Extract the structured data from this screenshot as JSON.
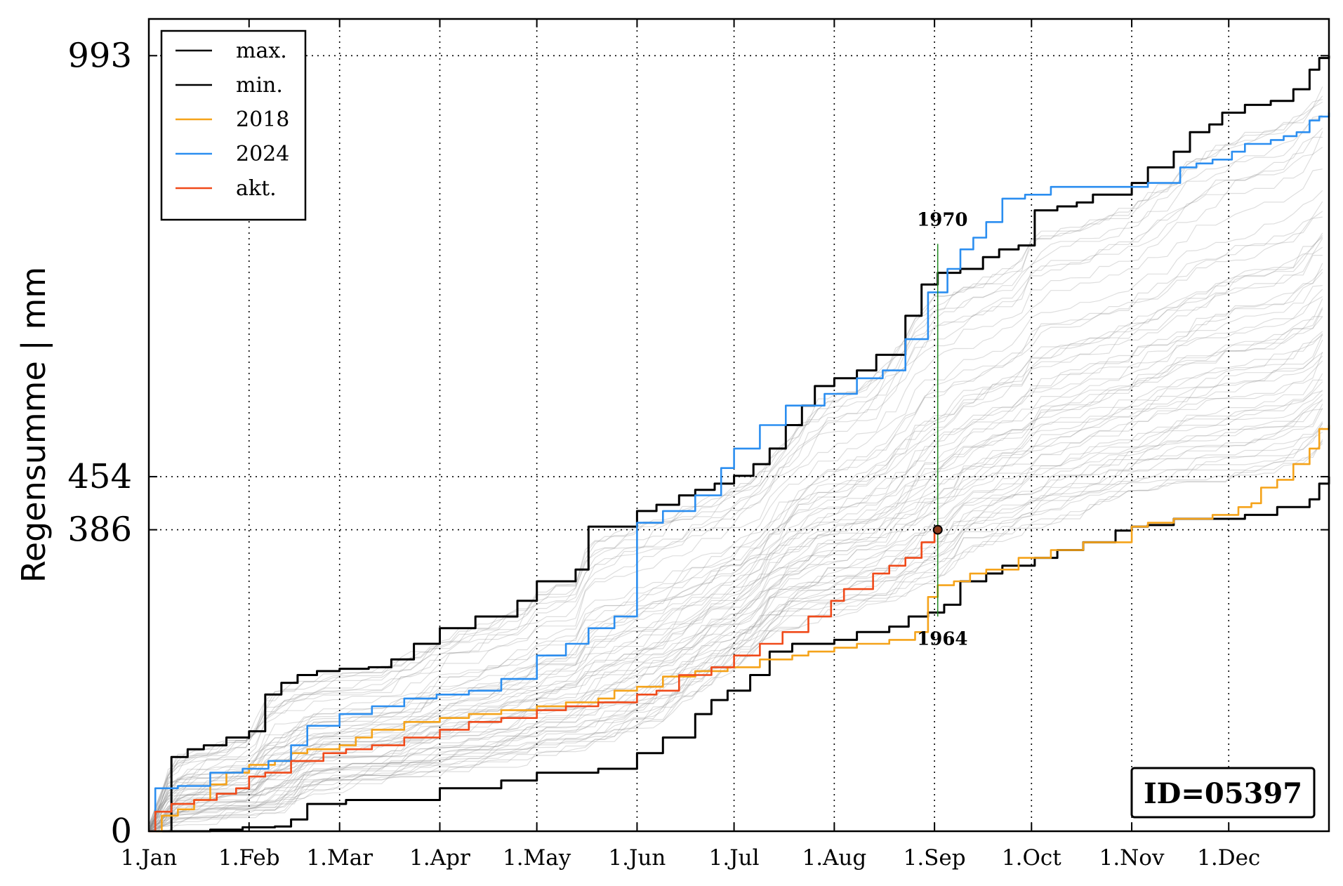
{
  "chart_data": {
    "type": "line",
    "xlabel": "",
    "ylabel": "Regensumme | mm",
    "x_unit": "day of year",
    "xlim": [
      1,
      366
    ],
    "ylim": [
      0,
      1040
    ],
    "x_ticks": [
      {
        "label": "1.Jan",
        "day": 1
      },
      {
        "label": "1.Feb",
        "day": 32
      },
      {
        "label": "1.Mar",
        "day": 60
      },
      {
        "label": "1.Apr",
        "day": 91
      },
      {
        "label": "1.May",
        "day": 121
      },
      {
        "label": "1.Jun",
        "day": 152
      },
      {
        "label": "1.Jul",
        "day": 182
      },
      {
        "label": "1.Aug",
        "day": 213
      },
      {
        "label": "1.Sep",
        "day": 244
      },
      {
        "label": "1.Oct",
        "day": 274
      },
      {
        "label": "1.Nov",
        "day": 305
      },
      {
        "label": "1.Dec",
        "day": 335
      }
    ],
    "y_ticks": [
      0,
      386,
      454,
      993
    ],
    "reference_lines_y": [
      993,
      454,
      386
    ],
    "grid": true,
    "legend": {
      "placement": "top-left",
      "entries": [
        {
          "name": "max.",
          "color": "#000000"
        },
        {
          "name": "min.",
          "color": "#000000"
        },
        {
          "name": "2018",
          "color": "#f5a31a"
        },
        {
          "name": "2024",
          "color": "#2b8ef0"
        },
        {
          "name": "akt.",
          "color": "#f04a1a"
        }
      ]
    },
    "series": [
      {
        "name": "max.",
        "color": "#000000",
        "x": [
          1,
          8,
          13,
          18,
          25,
          32,
          37,
          42,
          47,
          53,
          60,
          69,
          76,
          83,
          91,
          102,
          115,
          121,
          133,
          137,
          152,
          158,
          165,
          170,
          176,
          182,
          188,
          193,
          198,
          203,
          207,
          213,
          220,
          226,
          235,
          240,
          245,
          252,
          259,
          264,
          270,
          275,
          282,
          288,
          293,
          305,
          310,
          318,
          323,
          329,
          333,
          340,
          348,
          355,
          360,
          363,
          366
        ],
        "y": [
          0,
          95,
          105,
          110,
          120,
          128,
          175,
          190,
          200,
          205,
          208,
          210,
          220,
          240,
          260,
          275,
          295,
          320,
          335,
          390,
          410,
          418,
          430,
          437,
          445,
          455,
          470,
          490,
          520,
          545,
          570,
          580,
          590,
          610,
          660,
          700,
          715,
          720,
          735,
          745,
          750,
          795,
          800,
          805,
          815,
          830,
          850,
          870,
          895,
          905,
          920,
          930,
          935,
          950,
          975,
          990,
          993
        ]
      },
      {
        "name": "min.",
        "color": "#000000",
        "x": [
          1,
          15,
          20,
          30,
          40,
          45,
          50,
          62,
          91,
          110,
          121,
          140,
          152,
          160,
          170,
          175,
          180,
          187,
          193,
          200,
          213,
          220,
          230,
          236,
          242,
          247,
          252,
          260,
          265,
          275,
          282,
          290,
          300,
          305,
          310,
          318,
          330,
          340,
          350,
          360,
          363,
          366
        ],
        "y": [
          0,
          0,
          2,
          5,
          6,
          15,
          35,
          40,
          55,
          65,
          75,
          80,
          100,
          120,
          150,
          168,
          180,
          200,
          230,
          240,
          245,
          255,
          262,
          275,
          280,
          290,
          320,
          330,
          340,
          350,
          360,
          370,
          385,
          390,
          392,
          400,
          400,
          405,
          415,
          425,
          445,
          454
        ]
      },
      {
        "name": "2018",
        "color": "#f5a31a",
        "x": [
          1,
          5,
          10,
          15,
          20,
          25,
          32,
          40,
          45,
          50,
          60,
          65,
          70,
          80,
          91,
          100,
          110,
          121,
          130,
          140,
          145,
          152,
          160,
          170,
          180,
          190,
          200,
          205,
          213,
          220,
          230,
          238,
          242,
          245,
          250,
          255,
          260,
          270,
          280,
          290,
          305,
          310,
          318,
          325,
          330,
          338,
          342,
          345,
          350,
          355,
          360,
          363,
          366
        ],
        "y": [
          0,
          20,
          28,
          40,
          60,
          75,
          85,
          90,
          100,
          105,
          110,
          120,
          130,
          140,
          145,
          150,
          155,
          160,
          165,
          170,
          180,
          185,
          198,
          205,
          210,
          220,
          225,
          230,
          235,
          240,
          245,
          255,
          300,
          315,
          320,
          330,
          335,
          350,
          360,
          370,
          390,
          395,
          400,
          400,
          405,
          415,
          420,
          440,
          450,
          470,
          490,
          515,
          520
        ]
      },
      {
        "name": "2024",
        "color": "#2b8ef0",
        "x": [
          1,
          3,
          10,
          20,
          30,
          38,
          45,
          50,
          60,
          70,
          80,
          90,
          100,
          110,
          121,
          130,
          137,
          145,
          152,
          160,
          170,
          178,
          182,
          190,
          198,
          210,
          220,
          228,
          235,
          242,
          248,
          252,
          256,
          260,
          265,
          272,
          280,
          290,
          300,
          310,
          320,
          325,
          330,
          336,
          340,
          348,
          352,
          356,
          360,
          363,
          366
        ],
        "y": [
          0,
          55,
          58,
          75,
          80,
          90,
          110,
          135,
          150,
          160,
          170,
          175,
          180,
          195,
          225,
          240,
          260,
          275,
          395,
          410,
          430,
          465,
          490,
          520,
          545,
          560,
          580,
          590,
          630,
          690,
          720,
          745,
          760,
          780,
          810,
          815,
          825,
          825,
          825,
          830,
          850,
          855,
          860,
          870,
          880,
          885,
          890,
          895,
          910,
          915,
          920
        ]
      },
      {
        "name": "akt.",
        "color": "#f04a1a",
        "x": [
          1,
          3,
          8,
          15,
          22,
          28,
          32,
          37,
          45,
          55,
          62,
          70,
          80,
          91,
          100,
          110,
          121,
          130,
          140,
          152,
          158,
          165,
          175,
          182,
          190,
          197,
          205,
          212,
          216,
          225,
          230,
          235,
          240,
          244,
          245
        ],
        "y": [
          0,
          25,
          35,
          40,
          48,
          55,
          70,
          75,
          90,
          100,
          105,
          110,
          120,
          130,
          140,
          145,
          155,
          160,
          165,
          175,
          180,
          200,
          210,
          225,
          240,
          255,
          275,
          295,
          310,
          330,
          340,
          350,
          370,
          382,
          386
        ]
      }
    ],
    "annotations": [
      {
        "text": "1970",
        "x": 246,
        "y": 752
      },
      {
        "text": "1964",
        "x": 246,
        "y": 280
      }
    ],
    "marker": {
      "x": 245,
      "y": 386,
      "fill": "#8b3a1a"
    },
    "vertical_line": {
      "x": 245,
      "y_from": 275,
      "y_to": 752,
      "color": "#228b22"
    },
    "id_label": "ID=05397"
  }
}
